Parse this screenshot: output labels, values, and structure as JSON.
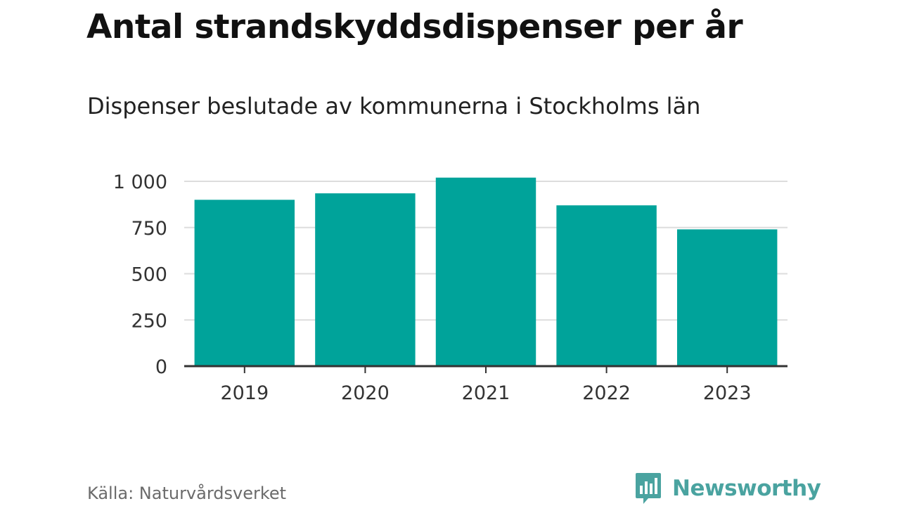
{
  "chart_data": {
    "type": "bar",
    "title": "Antal strandskyddsdispenser per år",
    "subtitle": "Dispenser beslutade av kommunerna i Stockholms län",
    "categories": [
      "2019",
      "2020",
      "2021",
      "2022",
      "2023"
    ],
    "values": [
      900,
      935,
      1020,
      870,
      740
    ],
    "ylim": [
      0,
      1000
    ],
    "yticks": [
      0,
      250,
      500,
      750,
      1000
    ],
    "ytick_labels": [
      "0",
      "250",
      "500",
      "750",
      "1 000"
    ],
    "xlabel": "",
    "ylabel": "",
    "grid": true,
    "bar_color": "#00a39a",
    "source": "Källa: Naturvårdsverket"
  },
  "branding": {
    "name": "Newsworthy",
    "color": "#4aa3a0",
    "logo_icon": "bar-chart-speech-bubble-icon"
  }
}
